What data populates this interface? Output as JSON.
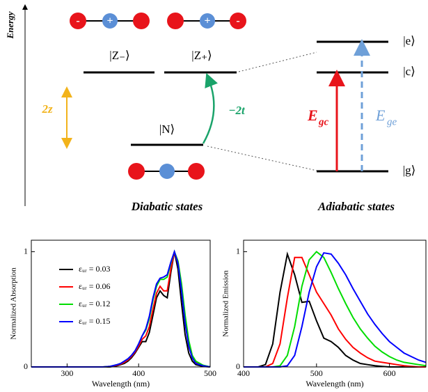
{
  "diagram": {
    "axis_label": "Energy",
    "ions_left": [
      "-",
      "+"
    ],
    "ions_right": [
      "+",
      "-"
    ],
    "z_minus": "|Z₋⟩",
    "z_plus": "|Z₊⟩",
    "n": "|N⟩",
    "splitting": "2z",
    "coupling": "−2t",
    "e": "|e⟩",
    "c": "|c⟩",
    "g": "|g⟩",
    "egc": {
      "main": "E",
      "sub": "gc"
    },
    "ege": {
      "main": "E",
      "sub": "ge"
    },
    "diabatic": "Diabatic states",
    "adiabatic": "Adiabatic states"
  },
  "chart_data": [
    {
      "type": "line",
      "xlabel": "Wavelength (nm)",
      "ylabel": "Normalized Absorption",
      "xlim": [
        250,
        500
      ],
      "ylim": [
        0,
        1.1
      ],
      "xticks": [
        300,
        400,
        500
      ],
      "yticks": [
        0,
        1
      ],
      "legend": "upper left",
      "x": [
        250,
        300,
        350,
        360,
        370,
        375,
        380,
        385,
        390,
        395,
        400,
        405,
        410,
        415,
        420,
        425,
        430,
        435,
        440,
        445,
        450,
        455,
        460,
        465,
        470,
        475,
        480,
        490,
        500
      ],
      "series": [
        {
          "name": "εᵤᵣ = 0.03",
          "color": "#000000",
          "values": [
            0,
            0,
            0,
            0,
            0.01,
            0.02,
            0.03,
            0.05,
            0.08,
            0.12,
            0.17,
            0.22,
            0.22,
            0.3,
            0.45,
            0.6,
            0.66,
            0.62,
            0.6,
            0.82,
            1.0,
            0.85,
            0.55,
            0.28,
            0.12,
            0.05,
            0.02,
            0.005,
            0
          ]
        },
        {
          "name": "εᵤᵣ = 0.06",
          "color": "#ff0000",
          "values": [
            0,
            0,
            0,
            0.005,
            0.015,
            0.025,
            0.04,
            0.06,
            0.09,
            0.13,
            0.18,
            0.24,
            0.27,
            0.35,
            0.5,
            0.64,
            0.7,
            0.66,
            0.66,
            0.85,
            1.0,
            0.9,
            0.68,
            0.4,
            0.2,
            0.09,
            0.04,
            0.01,
            0
          ]
        },
        {
          "name": "εᵤᵣ = 0.12",
          "color": "#00dd00",
          "values": [
            0,
            0,
            0,
            0.005,
            0.02,
            0.03,
            0.05,
            0.07,
            0.1,
            0.14,
            0.2,
            0.27,
            0.32,
            0.42,
            0.58,
            0.7,
            0.76,
            0.76,
            0.78,
            0.9,
            1.0,
            0.92,
            0.72,
            0.45,
            0.23,
            0.1,
            0.05,
            0.015,
            0
          ]
        },
        {
          "name": "εᵤᵣ = 0.15",
          "color": "#0000ff",
          "values": [
            0,
            0,
            0,
            0.005,
            0.02,
            0.03,
            0.05,
            0.07,
            0.1,
            0.14,
            0.2,
            0.27,
            0.33,
            0.44,
            0.6,
            0.72,
            0.77,
            0.78,
            0.8,
            0.91,
            1.0,
            0.9,
            0.66,
            0.38,
            0.18,
            0.08,
            0.03,
            0.01,
            0
          ]
        }
      ]
    },
    {
      "type": "line",
      "xlabel": "Wavelength (nm)",
      "ylabel": "Normalized Emission",
      "xlim": [
        400,
        650
      ],
      "ylim": [
        0,
        1.1
      ],
      "xticks": [
        400,
        500,
        600
      ],
      "yticks": [
        0,
        1
      ],
      "x": [
        400,
        410,
        420,
        430,
        440,
        450,
        460,
        470,
        480,
        490,
        500,
        510,
        520,
        530,
        540,
        550,
        560,
        570,
        580,
        590,
        600,
        610,
        620,
        630,
        640,
        650
      ],
      "series": [
        {
          "color": "#000000",
          "values": [
            0,
            0,
            0,
            0.02,
            0.2,
            0.65,
            0.98,
            0.8,
            0.56,
            0.57,
            0.4,
            0.25,
            0.22,
            0.17,
            0.1,
            0.06,
            0.03,
            0.02,
            0.01,
            0.005,
            0,
            0,
            0,
            0,
            0,
            0
          ]
        },
        {
          "color": "#ff0000",
          "values": [
            0,
            0,
            0,
            0,
            0.03,
            0.2,
            0.6,
            0.95,
            0.95,
            0.8,
            0.65,
            0.55,
            0.45,
            0.33,
            0.24,
            0.17,
            0.12,
            0.08,
            0.05,
            0.04,
            0.03,
            0.02,
            0.01,
            0.005,
            0,
            0
          ]
        },
        {
          "color": "#00dd00",
          "values": [
            0,
            0,
            0,
            0,
            0,
            0.01,
            0.1,
            0.35,
            0.7,
            0.93,
            1.0,
            0.95,
            0.82,
            0.68,
            0.55,
            0.43,
            0.33,
            0.25,
            0.18,
            0.13,
            0.09,
            0.06,
            0.04,
            0.03,
            0.02,
            0.01
          ]
        },
        {
          "color": "#0000ff",
          "values": [
            0,
            0,
            0,
            0,
            0,
            0,
            0.01,
            0.1,
            0.35,
            0.65,
            0.87,
            0.99,
            0.98,
            0.9,
            0.8,
            0.68,
            0.57,
            0.46,
            0.37,
            0.29,
            0.22,
            0.17,
            0.12,
            0.09,
            0.06,
            0.04
          ]
        }
      ]
    }
  ]
}
